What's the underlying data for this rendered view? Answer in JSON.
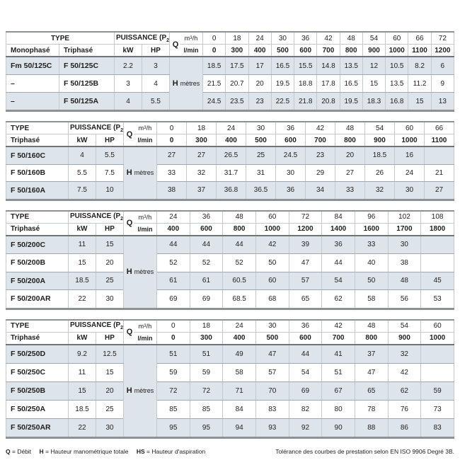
{
  "labels": {
    "puissance": {
      "pre": "PUISSANCE (P",
      "sub": "2",
      "post": ")"
    },
    "kw": "kW",
    "hp": "HP",
    "q": "Q",
    "m3h": {
      "pre": "m",
      "sup": "3",
      "post": "/h"
    },
    "lmin": "l/min",
    "h": "H",
    "metres": "mètres"
  },
  "tables": [
    {
      "id": "f50-125",
      "type_title": "TYPE",
      "type_subs": [
        "Monophasé",
        "Triphasé"
      ],
      "flow_m3h": [
        "0",
        "18",
        "24",
        "30",
        "36",
        "42",
        "48",
        "54",
        "60",
        "66",
        "72"
      ],
      "flow_lmin": [
        "0",
        "300",
        "400",
        "500",
        "600",
        "700",
        "800",
        "900",
        "1000",
        "1100",
        "1200"
      ],
      "rows": [
        {
          "types": [
            "Fm 50/125C",
            "F 50/125C"
          ],
          "kw": "2.2",
          "hp": "3",
          "values": [
            "18.5",
            "17.5",
            "17",
            "16.5",
            "15.5",
            "14.8",
            "13.5",
            "12",
            "10.5",
            "8.2",
            "6"
          ]
        },
        {
          "types": [
            "–",
            "F 50/125B"
          ],
          "kw": "3",
          "hp": "4",
          "values": [
            "21.5",
            "20.7",
            "20",
            "19.5",
            "18.8",
            "17.8",
            "16.5",
            "15",
            "13.5",
            "11.2",
            "9"
          ]
        },
        {
          "types": [
            "–",
            "F 50/125A"
          ],
          "kw": "4",
          "hp": "5.5",
          "values": [
            "24.5",
            "23.5",
            "23",
            "22.5",
            "21.8",
            "20.8",
            "19.5",
            "18.3",
            "16.8",
            "15",
            "13"
          ]
        }
      ]
    },
    {
      "id": "f50-160",
      "type_title": "TYPE",
      "type_subs": [
        "Triphasé"
      ],
      "flow_m3h": [
        "0",
        "18",
        "24",
        "30",
        "36",
        "42",
        "48",
        "54",
        "60",
        "66"
      ],
      "flow_lmin": [
        "0",
        "300",
        "400",
        "500",
        "600",
        "700",
        "800",
        "900",
        "1000",
        "1100"
      ],
      "rows": [
        {
          "types": [
            "F 50/160C"
          ],
          "kw": "4",
          "hp": "5.5",
          "values": [
            "27",
            "27",
            "26.5",
            "25",
            "24.5",
            "23",
            "20",
            "18.5",
            "16",
            ""
          ]
        },
        {
          "types": [
            "F 50/160B"
          ],
          "kw": "5.5",
          "hp": "7.5",
          "values": [
            "33",
            "32",
            "31.7",
            "31",
            "30",
            "29",
            "27",
            "26",
            "24",
            "21"
          ]
        },
        {
          "types": [
            "F 50/160A"
          ],
          "kw": "7.5",
          "hp": "10",
          "values": [
            "38",
            "37",
            "36.8",
            "36.5",
            "36",
            "34",
            "33",
            "32",
            "30",
            "27"
          ]
        }
      ]
    },
    {
      "id": "f50-200",
      "type_title": "TYPE",
      "type_subs": [
        "Triphasé"
      ],
      "flow_m3h": [
        "24",
        "36",
        "48",
        "60",
        "72",
        "84",
        "96",
        "102",
        "108"
      ],
      "flow_lmin": [
        "400",
        "600",
        "800",
        "1000",
        "1200",
        "1400",
        "1600",
        "1700",
        "1800"
      ],
      "rows": [
        {
          "types": [
            "F 50/200C"
          ],
          "kw": "11",
          "hp": "15",
          "values": [
            "44",
            "44",
            "44",
            "42",
            "39",
            "36",
            "33",
            "30",
            ""
          ]
        },
        {
          "types": [
            "F 50/200B"
          ],
          "kw": "15",
          "hp": "20",
          "values": [
            "52",
            "52",
            "52",
            "50",
            "47",
            "44",
            "40",
            "38",
            ""
          ]
        },
        {
          "types": [
            "F 50/200A"
          ],
          "kw": "18.5",
          "hp": "25",
          "values": [
            "61",
            "61",
            "60.5",
            "60",
            "57",
            "54",
            "50",
            "48",
            "45"
          ]
        },
        {
          "types": [
            "F 50/200AR"
          ],
          "kw": "22",
          "hp": "30",
          "values": [
            "69",
            "69",
            "68.5",
            "68",
            "65",
            "62",
            "58",
            "56",
            "53"
          ]
        }
      ]
    },
    {
      "id": "f50-250",
      "type_title": "TYPE",
      "type_subs": [
        "Triphasé"
      ],
      "flow_m3h": [
        "0",
        "18",
        "24",
        "30",
        "36",
        "42",
        "48",
        "54",
        "60"
      ],
      "flow_lmin": [
        "0",
        "300",
        "400",
        "500",
        "600",
        "700",
        "800",
        "900",
        "1000"
      ],
      "rows": [
        {
          "types": [
            "F 50/250D"
          ],
          "kw": "9.2",
          "hp": "12.5",
          "values": [
            "51",
            "51",
            "49",
            "47",
            "44",
            "41",
            "37",
            "32",
            ""
          ]
        },
        {
          "types": [
            "F 50/250C"
          ],
          "kw": "11",
          "hp": "15",
          "values": [
            "59",
            "59",
            "58",
            "57",
            "54",
            "51",
            "47",
            "42",
            ""
          ]
        },
        {
          "types": [
            "F 50/250B"
          ],
          "kw": "15",
          "hp": "20",
          "values": [
            "72",
            "72",
            "71",
            "70",
            "69",
            "67",
            "65",
            "62",
            "59"
          ]
        },
        {
          "types": [
            "F 50/250A"
          ],
          "kw": "18.5",
          "hp": "25",
          "values": [
            "85",
            "85",
            "84",
            "83",
            "82",
            "80",
            "78",
            "76",
            "73"
          ]
        },
        {
          "types": [
            "F 50/250AR"
          ],
          "kw": "22",
          "hp": "30",
          "values": [
            "95",
            "95",
            "94",
            "93",
            "92",
            "90",
            "88",
            "86",
            "83"
          ]
        }
      ]
    }
  ],
  "footer": {
    "legend": [
      {
        "symbol": "Q",
        "text": "= Débit"
      },
      {
        "symbol": "H",
        "text": "= Hauteur manométrique totale"
      },
      {
        "symbol": "HS",
        "text": "= Hauteur d'aspiration"
      }
    ],
    "tolerance": "Tolérance des courbes de prestation selon EN ISO 9906 Degré 3B."
  }
}
